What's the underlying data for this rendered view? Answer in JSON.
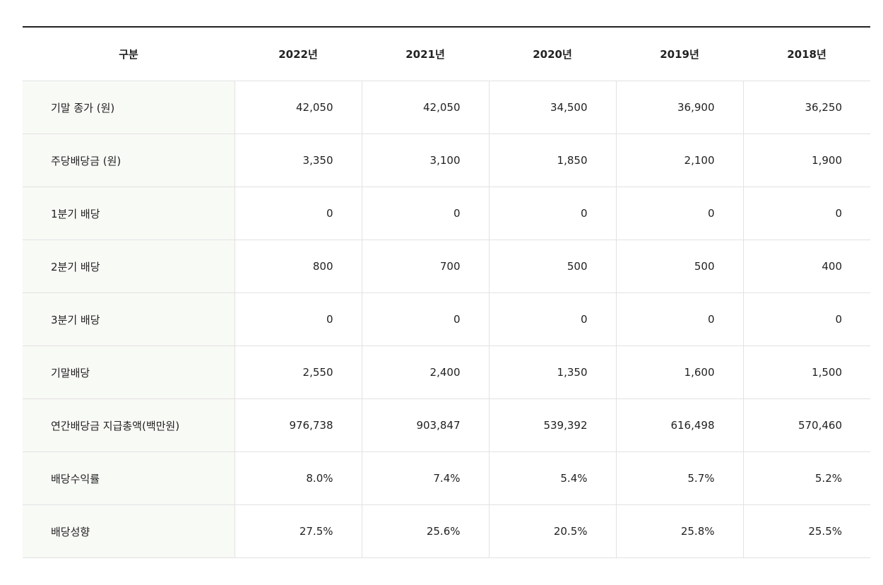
{
  "table": {
    "header": [
      "구분",
      "2022년",
      "2021년",
      "2020년",
      "2019년",
      "2018년"
    ],
    "rows": [
      [
        "기말 종가 (원)",
        "42,050",
        "42,050",
        "34,500",
        "36,900",
        "36,250"
      ],
      [
        "주당배당금 (원)",
        "3,350",
        "3,100",
        "1,850",
        "2,100",
        "1,900"
      ],
      [
        "1분기 배당",
        "0",
        "0",
        "0",
        "0",
        "0"
      ],
      [
        "2분기 배당",
        "800",
        "700",
        "500",
        "500",
        "400"
      ],
      [
        "3분기 배당",
        "0",
        "0",
        "0",
        "0",
        "0"
      ],
      [
        "기말배당",
        "2,550",
        "2,400",
        "1,350",
        "1,600",
        "1,500"
      ],
      [
        "연간배당금 지급총액(백만원)",
        "976,738",
        "903,847",
        "539,392",
        "616,498",
        "570,460"
      ],
      [
        "배당수익률",
        "8.0%",
        "7.4%",
        "5.4%",
        "5.7%",
        "5.2%"
      ],
      [
        "배당성향",
        "27.5%",
        "25.6%",
        "20.5%",
        "25.8%",
        "25.5%"
      ]
    ]
  }
}
